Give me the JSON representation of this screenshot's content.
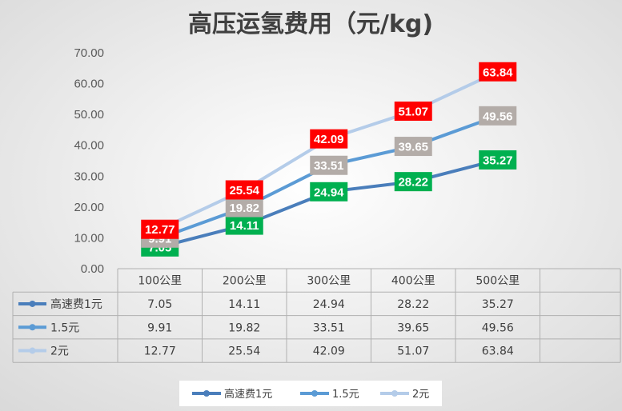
{
  "chart_data": {
    "type": "line",
    "title": "高压运氢费用（元/kg)",
    "xlabel": "",
    "ylabel": "",
    "ylim": [
      0,
      70
    ],
    "yticks": [
      "0.00",
      "10.00",
      "20.00",
      "30.00",
      "40.00",
      "50.00",
      "60.00",
      "70.00"
    ],
    "categories": [
      "100公里",
      "200公里",
      "300公里",
      "400公里",
      "500公里"
    ],
    "series": [
      {
        "name": "高速费1元",
        "color": "#4a7ebb",
        "label_bg": "#00b050",
        "values": [
          7.05,
          14.11,
          24.94,
          28.22,
          35.27
        ],
        "labels": [
          "7.05",
          "14.11",
          "24.94",
          "28.22",
          "35.27"
        ]
      },
      {
        "name": "1.5元",
        "color": "#5b9bd5",
        "label_bg": "#b3aca8",
        "values": [
          9.91,
          19.82,
          33.51,
          39.65,
          49.56
        ],
        "labels": [
          "9.91",
          "19.82",
          "33.51",
          "39.65",
          "49.56"
        ]
      },
      {
        "name": "2元",
        "color": "#b4cce9",
        "label_bg": "#ff0000",
        "values": [
          12.77,
          25.54,
          42.09,
          51.07,
          63.84
        ],
        "labels": [
          "12.77",
          "25.54",
          "42.09",
          "51.07",
          "63.84"
        ]
      }
    ],
    "grid": false,
    "legend": "bottom",
    "data_table": true
  }
}
